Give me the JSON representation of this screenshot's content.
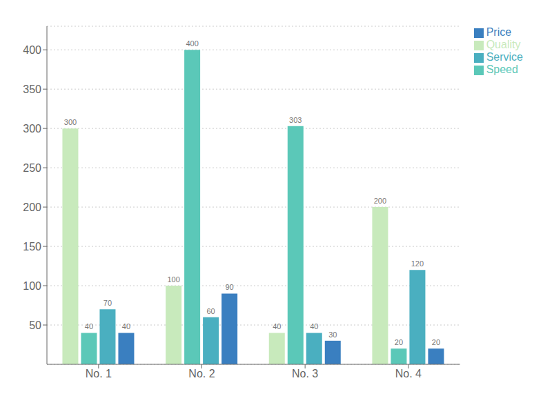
{
  "chart_data": {
    "type": "bar",
    "categories": [
      "No. 1",
      "No. 2",
      "No. 3",
      "No. 4"
    ],
    "series": [
      {
        "name": "Quality",
        "color": "#c8eabc",
        "values": [
          300,
          100,
          40,
          200
        ]
      },
      {
        "name": "Speed",
        "color": "#5bc8b8",
        "values": [
          40,
          400,
          303,
          20
        ]
      },
      {
        "name": "Service",
        "color": "#4aafc0",
        "values": [
          70,
          60,
          40,
          120
        ]
      },
      {
        "name": "Price",
        "color": "#3a7fc0",
        "values": [
          40,
          90,
          30,
          20
        ]
      }
    ],
    "ylim": [
      0,
      430
    ],
    "yticks": [
      50,
      100,
      150,
      200,
      250,
      300,
      350,
      400
    ],
    "grid": true,
    "legend": "right",
    "data_labels": true
  }
}
